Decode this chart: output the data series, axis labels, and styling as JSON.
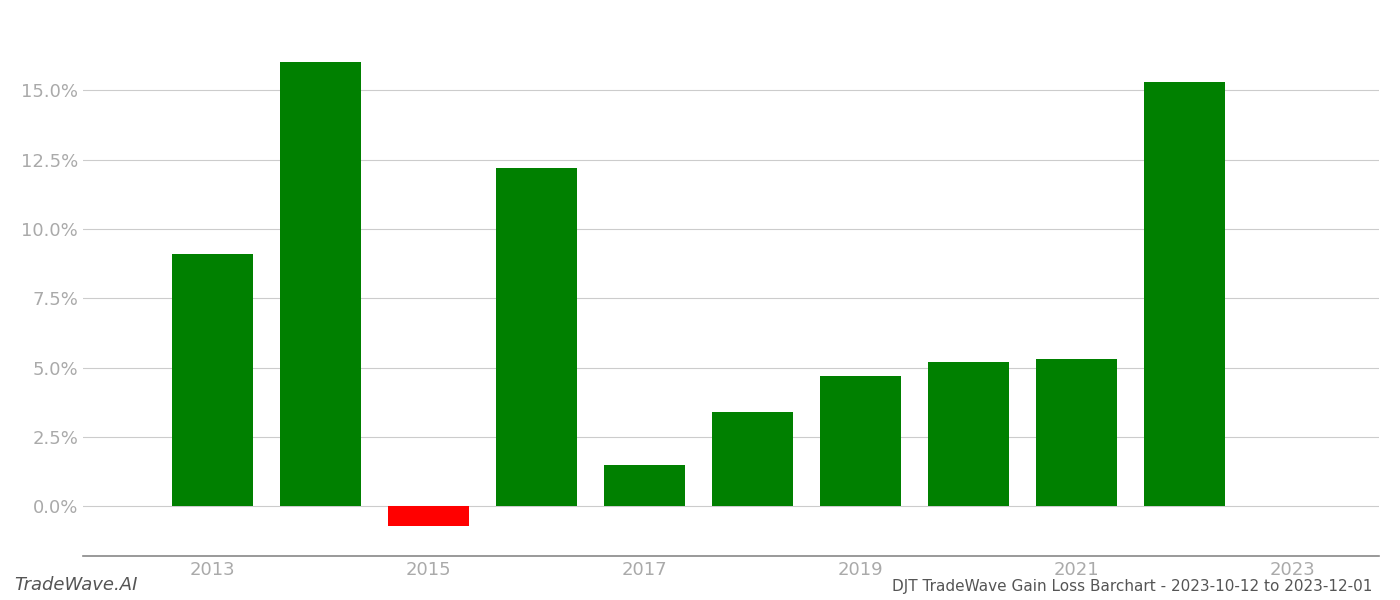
{
  "years": [
    2013,
    2014,
    2015,
    2016,
    2017,
    2018,
    2019,
    2020,
    2021,
    2022
  ],
  "values": [
    0.091,
    0.16,
    -0.007,
    0.122,
    0.015,
    0.034,
    0.047,
    0.052,
    0.053,
    0.153
  ],
  "colors": [
    "#008000",
    "#008000",
    "#ff0000",
    "#008000",
    "#008000",
    "#008000",
    "#008000",
    "#008000",
    "#008000",
    "#008000"
  ],
  "title": "DJT TradeWave Gain Loss Barchart - 2023-10-12 to 2023-12-01",
  "watermark": "TradeWave.AI",
  "ylim_min": -0.018,
  "ylim_max": 0.175,
  "yticks": [
    0.0,
    0.025,
    0.05,
    0.075,
    0.1,
    0.125,
    0.15
  ],
  "xtick_labels": [
    "2013",
    "2015",
    "2017",
    "2019",
    "2021",
    "2023"
  ],
  "background_color": "#ffffff",
  "bar_width": 0.75,
  "grid_color": "#cccccc",
  "axis_color": "#888888",
  "tick_label_color": "#aaaaaa",
  "title_color": "#555555",
  "watermark_color": "#555555",
  "title_fontsize": 11,
  "watermark_fontsize": 13,
  "tick_fontsize": 13
}
